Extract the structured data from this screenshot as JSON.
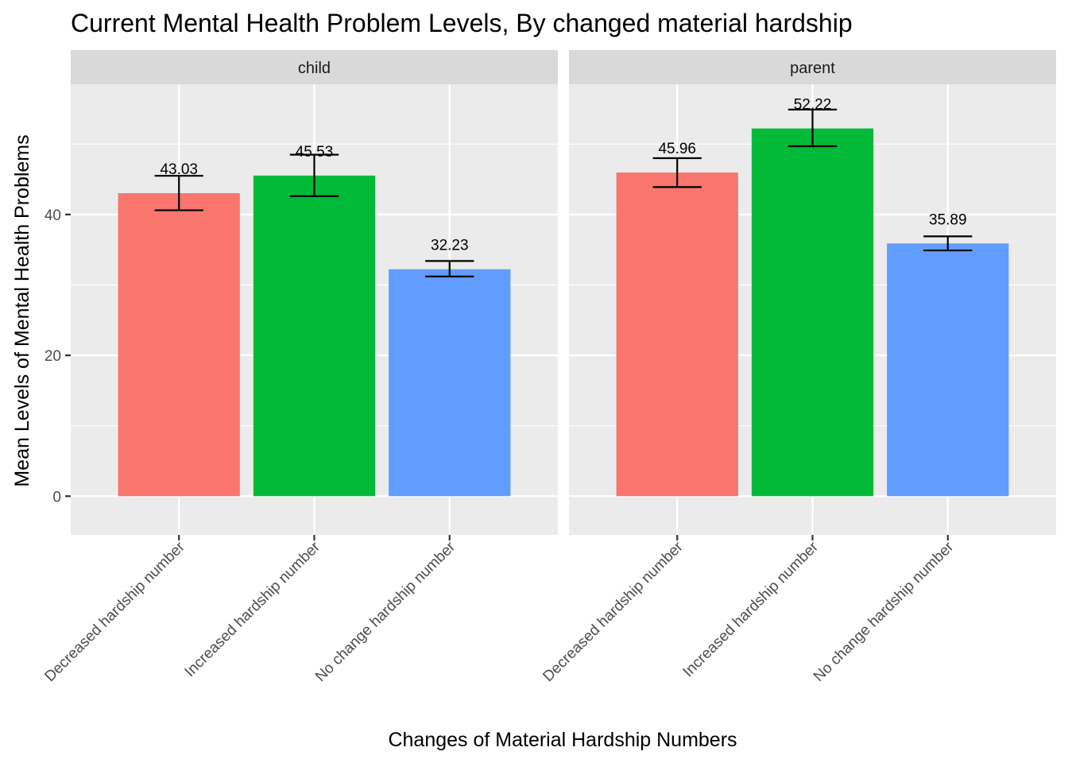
{
  "chart_data": {
    "type": "bar",
    "title": "Current Mental Health Problem Levels, By changed material hardship",
    "xlabel": "Changes of Material Hardship Numbers",
    "ylabel": "Mean Levels of Mental Health Problems",
    "ylim": [
      -5.5,
      58.5
    ],
    "y_ticks": [
      0,
      20,
      40
    ],
    "grid": true,
    "legend": "none",
    "categories": [
      "Decreased hardship number",
      "Increased hardship number",
      "No change hardship number"
    ],
    "colors": [
      "#F8766D",
      "#00BA38",
      "#619CFF"
    ],
    "facets": [
      {
        "label": "child",
        "values": [
          43.03,
          45.53,
          32.23
        ],
        "value_labels": [
          "43.03",
          "45.53",
          "32.23"
        ],
        "error_low": [
          40.6,
          42.6,
          31.2
        ],
        "error_high": [
          45.5,
          48.5,
          33.4
        ]
      },
      {
        "label": "parent",
        "values": [
          45.96,
          52.22,
          35.89
        ],
        "value_labels": [
          "45.96",
          "52.22",
          "35.89"
        ],
        "error_low": [
          43.9,
          49.7,
          34.9
        ],
        "error_high": [
          48.0,
          54.9,
          36.9
        ]
      }
    ]
  }
}
